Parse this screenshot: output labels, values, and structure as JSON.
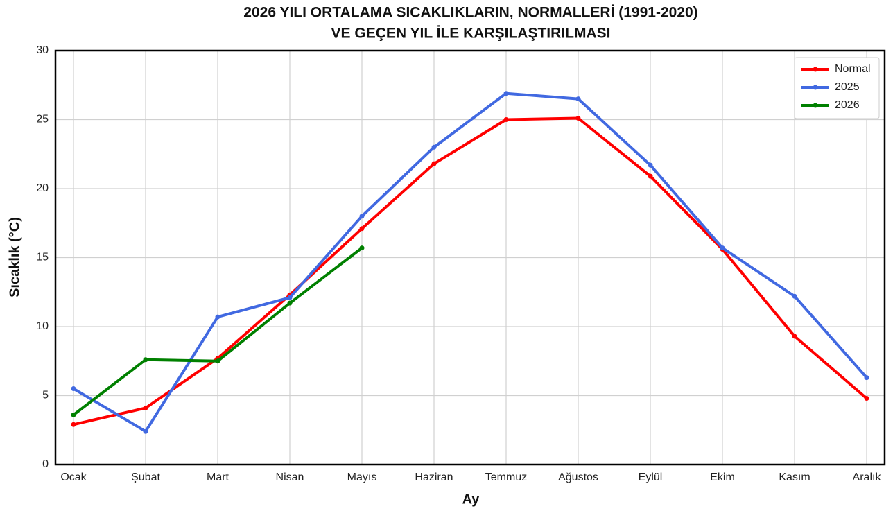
{
  "chart_data": {
    "type": "line",
    "title": [
      "2026 YILI ORTALAMA SICAKLIKLARIN, NORMALLERİ (1991-2020)",
      "VE GEÇEN YIL İLE KARŞILAŞTIRILMASI"
    ],
    "x_label": "Ay",
    "y_label": "Sıcaklık (°C)",
    "categories": [
      "Ocak",
      "Şubat",
      "Mart",
      "Nisan",
      "Mayıs",
      "Haziran",
      "Temmuz",
      "Ağustos",
      "Eylül",
      "Ekim",
      "Kasım",
      "Aralık"
    ],
    "series": [
      {
        "name": "Normal",
        "color": "#ff0000",
        "values": [
          2.9,
          4.1,
          7.7,
          12.3,
          17.1,
          21.8,
          25.0,
          25.1,
          20.9,
          15.6,
          9.3,
          4.8
        ]
      },
      {
        "name": "2025",
        "color": "#4169e1",
        "values": [
          5.5,
          2.4,
          10.7,
          12.1,
          18.0,
          23.0,
          26.9,
          26.5,
          21.7,
          15.7,
          12.2,
          6.3
        ]
      },
      {
        "name": "2026",
        "color": "#008000",
        "values": [
          3.6,
          7.6,
          7.5,
          11.7,
          15.7,
          null,
          null,
          null,
          null,
          null,
          null,
          null
        ]
      }
    ],
    "ylim": [
      0,
      30
    ],
    "yticks": [
      0,
      5,
      10,
      15,
      20,
      25,
      30
    ],
    "grid": true,
    "legend": "upper right"
  }
}
